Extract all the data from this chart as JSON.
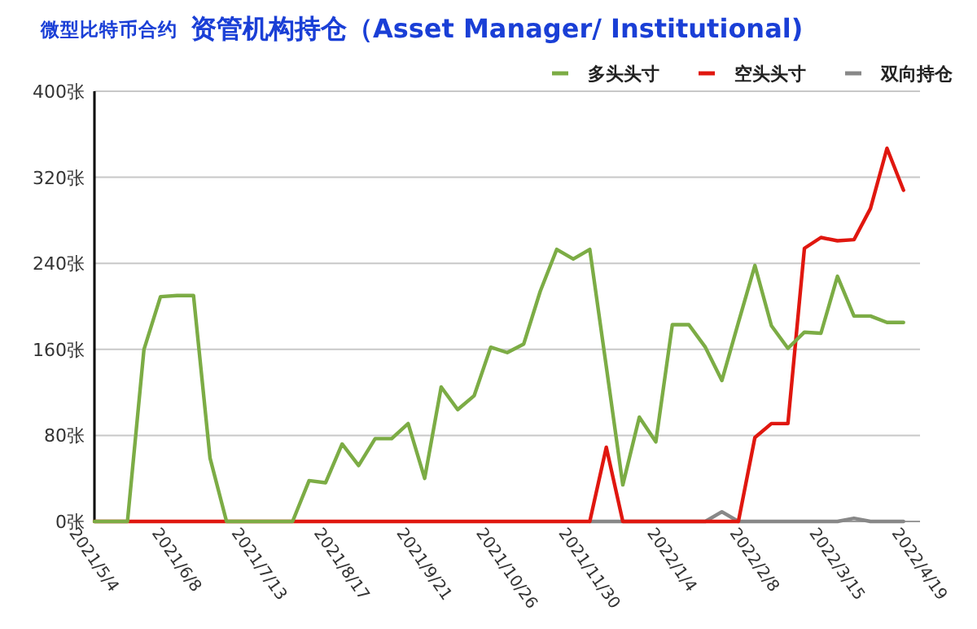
{
  "chart_data": {
    "type": "line",
    "subtitle": "微型比特币合约",
    "title": "资管机构持仓（Asset Manager/ Institutional)",
    "x": [
      "2021-05-04",
      "2021-05-11",
      "2021-05-18",
      "2021-05-25",
      "2021-06-01",
      "2021-06-08",
      "2021-06-15",
      "2021-06-22",
      "2021-06-29",
      "2021-07-06",
      "2021-07-13",
      "2021-07-20",
      "2021-07-27",
      "2021-08-03",
      "2021-08-10",
      "2021-08-17",
      "2021-08-24",
      "2021-08-31",
      "2021-09-07",
      "2021-09-14",
      "2021-09-21",
      "2021-09-28",
      "2021-10-05",
      "2021-10-12",
      "2021-10-19",
      "2021-10-26",
      "2021-11-02",
      "2021-11-09",
      "2021-11-16",
      "2021-11-23",
      "2021-11-30",
      "2021-12-07",
      "2021-12-14",
      "2021-12-21",
      "2021-12-28",
      "2022-01-04",
      "2022-01-11",
      "2022-01-18",
      "2022-01-25",
      "2022-02-01",
      "2022-02-08",
      "2022-02-15",
      "2022-02-22",
      "2022-03-01",
      "2022-03-08",
      "2022-03-15",
      "2022-03-22",
      "2022-03-29",
      "2022-04-05",
      "2022-04-12"
    ],
    "series": [
      {
        "name": "多头头寸",
        "color": "#7cac45",
        "values": [
          0,
          0,
          0,
          160,
          209,
          210,
          210,
          59,
          0,
          0,
          0,
          0,
          0,
          38,
          36,
          72,
          52,
          77,
          77,
          91,
          40,
          125,
          104,
          117,
          162,
          157,
          165,
          214,
          253,
          244,
          253,
          144,
          34,
          97,
          74,
          183,
          183,
          162,
          131,
          185,
          238,
          182,
          161,
          176,
          175,
          228,
          191,
          191,
          185,
          185
        ]
      },
      {
        "name": "空头头寸",
        "color": "#e0170f",
        "values": [
          0,
          0,
          0,
          0,
          0,
          0,
          0,
          0,
          0,
          0,
          0,
          0,
          0,
          0,
          0,
          0,
          0,
          0,
          0,
          0,
          0,
          0,
          0,
          0,
          0,
          0,
          0,
          0,
          0,
          0,
          0,
          69,
          0,
          0,
          0,
          0,
          0,
          0,
          0,
          0,
          78,
          91,
          91,
          254,
          264,
          261,
          262,
          291,
          347,
          308
        ]
      },
      {
        "name": "双向持仓",
        "color": "#888888",
        "values": [
          null,
          null,
          null,
          null,
          null,
          null,
          null,
          null,
          null,
          null,
          null,
          null,
          null,
          null,
          null,
          null,
          null,
          null,
          null,
          null,
          null,
          null,
          null,
          null,
          null,
          null,
          null,
          null,
          null,
          null,
          0,
          0,
          0,
          0,
          0,
          0,
          0,
          0,
          9,
          0,
          0,
          0,
          0,
          0,
          0,
          0,
          3,
          0,
          0,
          0
        ]
      }
    ],
    "xlim": [
      "2021-05-04",
      "2022-04-19"
    ],
    "xticks": [
      {
        "value": "2021-05-04",
        "label": "2021/5/4"
      },
      {
        "value": "2021-06-08",
        "label": "2021/6/8"
      },
      {
        "value": "2021-07-13",
        "label": "2021/7/13"
      },
      {
        "value": "2021-08-17",
        "label": "2021/8/17"
      },
      {
        "value": "2021-09-21",
        "label": "2021/9/21"
      },
      {
        "value": "2021-10-26",
        "label": "2021/10/26"
      },
      {
        "value": "2021-11-30",
        "label": "2021/11/30"
      },
      {
        "value": "2022-01-04",
        "label": "2022/1/4"
      },
      {
        "value": "2022-02-08",
        "label": "2022/2/8"
      },
      {
        "value": "2022-03-15",
        "label": "2022/3/15"
      },
      {
        "value": "2022-04-19",
        "label": "2022/4/19"
      }
    ],
    "ylim": [
      0,
      400
    ],
    "yticks": [
      {
        "value": 0,
        "label": "0张"
      },
      {
        "value": 80,
        "label": "80张"
      },
      {
        "value": 160,
        "label": "160张"
      },
      {
        "value": 240,
        "label": "240张"
      },
      {
        "value": 320,
        "label": "320张"
      },
      {
        "value": 400,
        "label": "400张"
      }
    ],
    "grid": "y",
    "legend": "top right",
    "marker": "none",
    "line_style": "solid"
  }
}
